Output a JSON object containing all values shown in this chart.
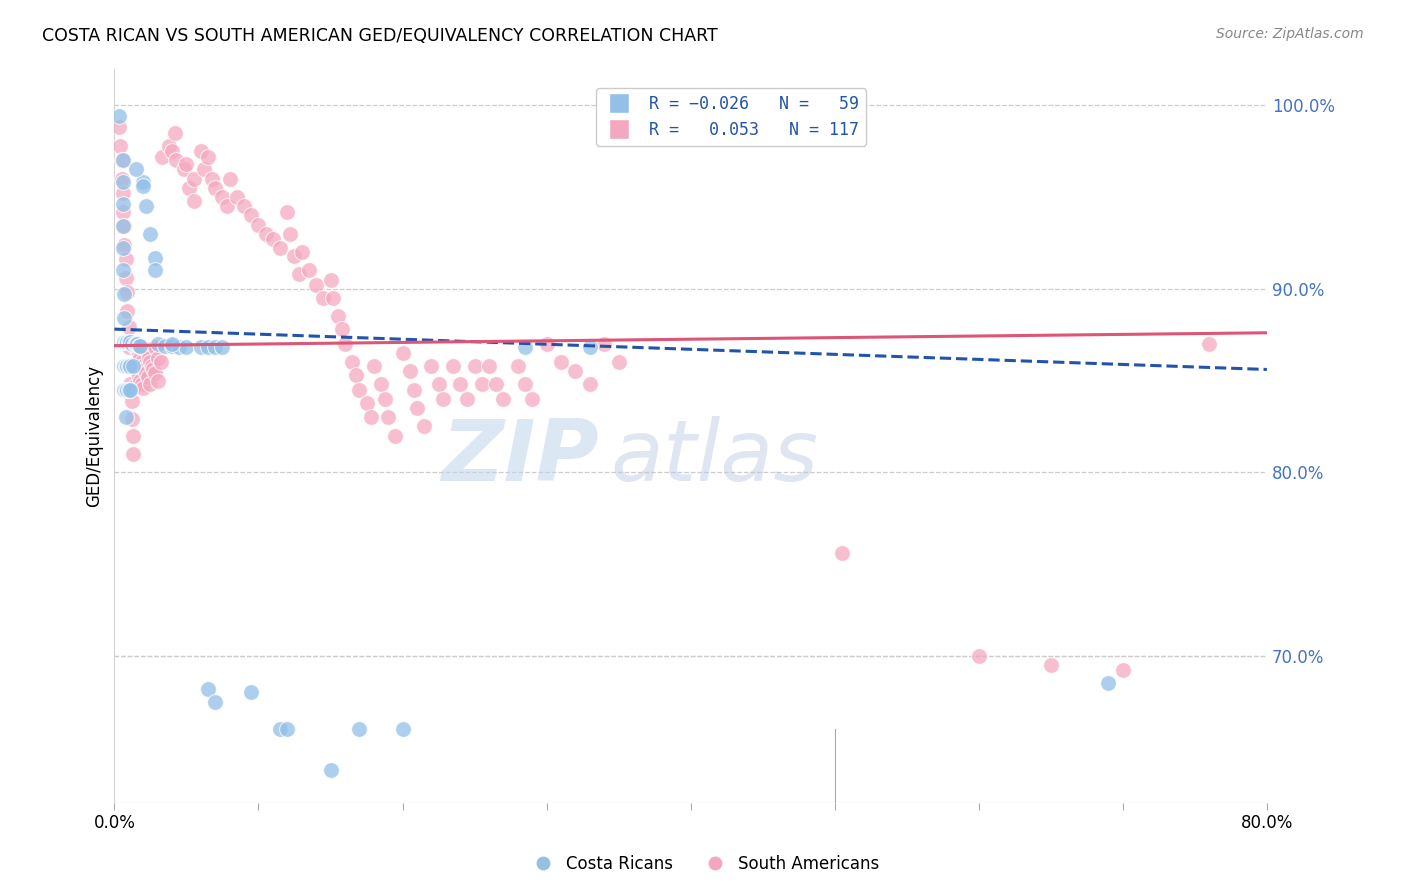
{
  "title": "COSTA RICAN VS SOUTH AMERICAN GED/EQUIVALENCY CORRELATION CHART",
  "source": "Source: ZipAtlas.com",
  "ylabel": "GED/Equivalency",
  "xlim": [
    0.0,
    0.8
  ],
  "ylim": [
    0.62,
    1.02
  ],
  "xticks": [
    0.0,
    0.1,
    0.2,
    0.3,
    0.4,
    0.5,
    0.6,
    0.7,
    0.8
  ],
  "xticklabels": [
    "0.0%",
    "",
    "",
    "",
    "",
    "",
    "",
    "",
    "80.0%"
  ],
  "ytick_vals": [
    0.7,
    0.8,
    0.9,
    1.0
  ],
  "ytick_labels_right": [
    "70.0%",
    "80.0%",
    "90.0%",
    "100.0%"
  ],
  "blue_color": "#92c0e8",
  "pink_color": "#f4a8c0",
  "blue_line_color": "#2255aa",
  "pink_line_color": "#dd5577",
  "watermark_zip": "ZIP",
  "watermark_atlas": "atlas",
  "blue_trend": [
    0.0,
    0.878,
    0.8,
    0.856
  ],
  "pink_trend": [
    0.0,
    0.869,
    0.8,
    0.876
  ],
  "blue_points": [
    [
      0.003,
      0.994
    ],
    [
      0.006,
      0.97
    ],
    [
      0.006,
      0.958
    ],
    [
      0.006,
      0.946
    ],
    [
      0.006,
      0.934
    ],
    [
      0.006,
      0.922
    ],
    [
      0.006,
      0.91
    ],
    [
      0.007,
      0.897
    ],
    [
      0.007,
      0.884
    ],
    [
      0.007,
      0.871
    ],
    [
      0.007,
      0.858
    ],
    [
      0.007,
      0.845
    ],
    [
      0.008,
      0.871
    ],
    [
      0.008,
      0.858
    ],
    [
      0.008,
      0.845
    ],
    [
      0.008,
      0.83
    ],
    [
      0.009,
      0.871
    ],
    [
      0.009,
      0.858
    ],
    [
      0.009,
      0.845
    ],
    [
      0.01,
      0.871
    ],
    [
      0.01,
      0.858
    ],
    [
      0.01,
      0.845
    ],
    [
      0.011,
      0.871
    ],
    [
      0.011,
      0.858
    ],
    [
      0.011,
      0.845
    ],
    [
      0.012,
      0.87
    ],
    [
      0.013,
      0.858
    ],
    [
      0.014,
      0.87
    ],
    [
      0.015,
      0.87
    ],
    [
      0.016,
      0.87
    ],
    [
      0.017,
      0.869
    ],
    [
      0.018,
      0.869
    ],
    [
      0.02,
      0.958
    ],
    [
      0.022,
      0.945
    ],
    [
      0.025,
      0.93
    ],
    [
      0.028,
      0.917
    ],
    [
      0.03,
      0.87
    ],
    [
      0.035,
      0.869
    ],
    [
      0.04,
      0.869
    ],
    [
      0.045,
      0.868
    ],
    [
      0.05,
      0.868
    ],
    [
      0.06,
      0.868
    ],
    [
      0.065,
      0.868
    ],
    [
      0.07,
      0.868
    ],
    [
      0.075,
      0.868
    ],
    [
      0.015,
      0.965
    ],
    [
      0.02,
      0.956
    ],
    [
      0.028,
      0.91
    ],
    [
      0.04,
      0.87
    ],
    [
      0.065,
      0.682
    ],
    [
      0.07,
      0.675
    ],
    [
      0.095,
      0.68
    ],
    [
      0.115,
      0.66
    ],
    [
      0.12,
      0.66
    ],
    [
      0.15,
      0.638
    ],
    [
      0.17,
      0.66
    ],
    [
      0.2,
      0.66
    ],
    [
      0.285,
      0.868
    ],
    [
      0.33,
      0.868
    ],
    [
      0.69,
      0.685
    ]
  ],
  "pink_points": [
    [
      0.003,
      0.988
    ],
    [
      0.004,
      0.978
    ],
    [
      0.005,
      0.97
    ],
    [
      0.005,
      0.96
    ],
    [
      0.006,
      0.952
    ],
    [
      0.006,
      0.942
    ],
    [
      0.007,
      0.934
    ],
    [
      0.007,
      0.924
    ],
    [
      0.008,
      0.916
    ],
    [
      0.008,
      0.906
    ],
    [
      0.009,
      0.898
    ],
    [
      0.009,
      0.888
    ],
    [
      0.01,
      0.879
    ],
    [
      0.01,
      0.868
    ],
    [
      0.011,
      0.858
    ],
    [
      0.011,
      0.848
    ],
    [
      0.012,
      0.839
    ],
    [
      0.012,
      0.829
    ],
    [
      0.013,
      0.82
    ],
    [
      0.013,
      0.81
    ],
    [
      0.014,
      0.868
    ],
    [
      0.014,
      0.857
    ],
    [
      0.014,
      0.847
    ],
    [
      0.015,
      0.868
    ],
    [
      0.015,
      0.857
    ],
    [
      0.016,
      0.868
    ],
    [
      0.016,
      0.855
    ],
    [
      0.017,
      0.865
    ],
    [
      0.017,
      0.852
    ],
    [
      0.018,
      0.862
    ],
    [
      0.018,
      0.85
    ],
    [
      0.019,
      0.86
    ],
    [
      0.019,
      0.848
    ],
    [
      0.02,
      0.858
    ],
    [
      0.02,
      0.846
    ],
    [
      0.021,
      0.856
    ],
    [
      0.022,
      0.867
    ],
    [
      0.022,
      0.854
    ],
    [
      0.023,
      0.865
    ],
    [
      0.023,
      0.852
    ],
    [
      0.024,
      0.862
    ],
    [
      0.025,
      0.86
    ],
    [
      0.025,
      0.848
    ],
    [
      0.026,
      0.858
    ],
    [
      0.027,
      0.856
    ],
    [
      0.028,
      0.868
    ],
    [
      0.028,
      0.854
    ],
    [
      0.03,
      0.862
    ],
    [
      0.03,
      0.85
    ],
    [
      0.032,
      0.86
    ],
    [
      0.033,
      0.972
    ],
    [
      0.038,
      0.978
    ],
    [
      0.04,
      0.975
    ],
    [
      0.042,
      0.985
    ],
    [
      0.043,
      0.97
    ],
    [
      0.048,
      0.965
    ],
    [
      0.05,
      0.968
    ],
    [
      0.052,
      0.955
    ],
    [
      0.055,
      0.948
    ],
    [
      0.055,
      0.96
    ],
    [
      0.06,
      0.975
    ],
    [
      0.062,
      0.965
    ],
    [
      0.065,
      0.972
    ],
    [
      0.068,
      0.96
    ],
    [
      0.07,
      0.955
    ],
    [
      0.075,
      0.95
    ],
    [
      0.078,
      0.945
    ],
    [
      0.08,
      0.96
    ],
    [
      0.085,
      0.95
    ],
    [
      0.09,
      0.945
    ],
    [
      0.095,
      0.94
    ],
    [
      0.1,
      0.935
    ],
    [
      0.105,
      0.93
    ],
    [
      0.11,
      0.927
    ],
    [
      0.115,
      0.922
    ],
    [
      0.12,
      0.942
    ],
    [
      0.122,
      0.93
    ],
    [
      0.125,
      0.918
    ],
    [
      0.128,
      0.908
    ],
    [
      0.13,
      0.92
    ],
    [
      0.135,
      0.91
    ],
    [
      0.14,
      0.902
    ],
    [
      0.145,
      0.895
    ],
    [
      0.15,
      0.905
    ],
    [
      0.152,
      0.895
    ],
    [
      0.155,
      0.885
    ],
    [
      0.158,
      0.878
    ],
    [
      0.16,
      0.87
    ],
    [
      0.165,
      0.86
    ],
    [
      0.168,
      0.853
    ],
    [
      0.17,
      0.845
    ],
    [
      0.175,
      0.838
    ],
    [
      0.178,
      0.83
    ],
    [
      0.18,
      0.858
    ],
    [
      0.185,
      0.848
    ],
    [
      0.188,
      0.84
    ],
    [
      0.19,
      0.83
    ],
    [
      0.195,
      0.82
    ],
    [
      0.2,
      0.865
    ],
    [
      0.205,
      0.855
    ],
    [
      0.208,
      0.845
    ],
    [
      0.21,
      0.835
    ],
    [
      0.215,
      0.825
    ],
    [
      0.22,
      0.858
    ],
    [
      0.225,
      0.848
    ],
    [
      0.228,
      0.84
    ],
    [
      0.235,
      0.858
    ],
    [
      0.24,
      0.848
    ],
    [
      0.245,
      0.84
    ],
    [
      0.25,
      0.858
    ],
    [
      0.255,
      0.848
    ],
    [
      0.26,
      0.858
    ],
    [
      0.265,
      0.848
    ],
    [
      0.27,
      0.84
    ],
    [
      0.28,
      0.858
    ],
    [
      0.285,
      0.848
    ],
    [
      0.29,
      0.84
    ],
    [
      0.3,
      0.87
    ],
    [
      0.31,
      0.86
    ],
    [
      0.32,
      0.855
    ],
    [
      0.33,
      0.848
    ],
    [
      0.34,
      0.87
    ],
    [
      0.35,
      0.86
    ],
    [
      0.505,
      0.756
    ],
    [
      0.6,
      0.7
    ],
    [
      0.65,
      0.695
    ],
    [
      0.7,
      0.692
    ],
    [
      0.76,
      0.87
    ]
  ]
}
